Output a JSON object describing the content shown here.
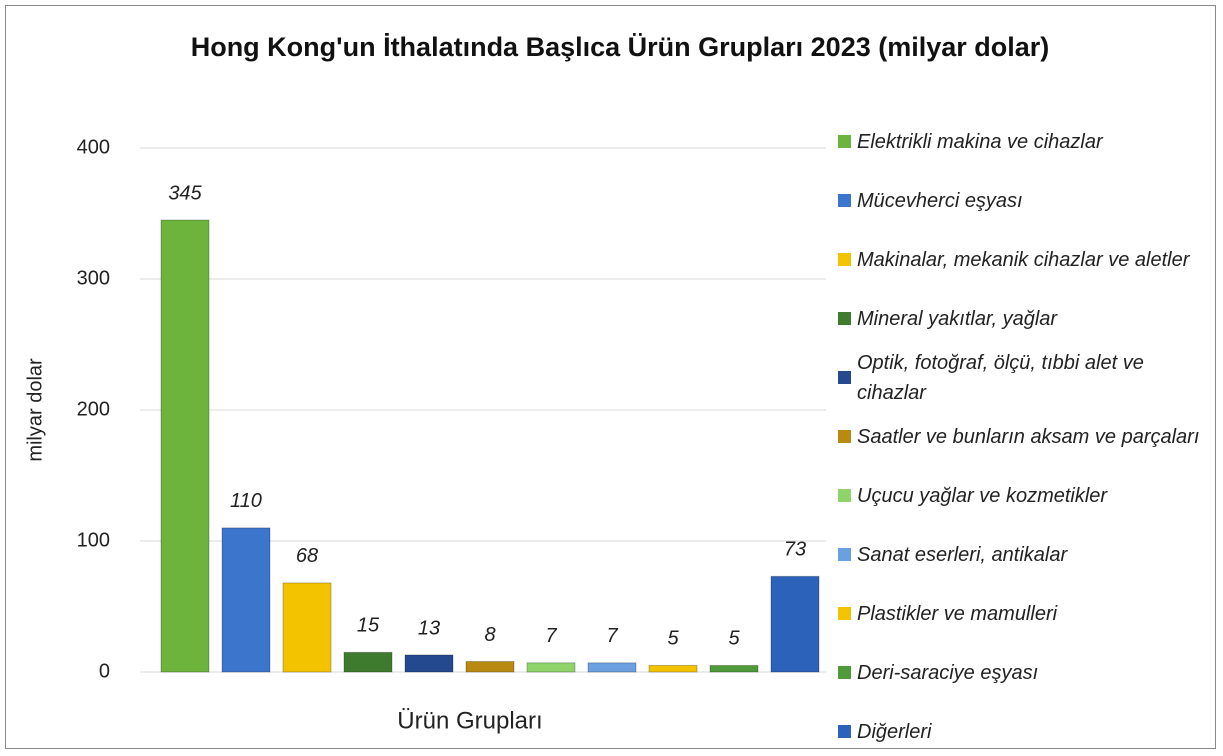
{
  "chart_data": {
    "type": "bar",
    "title": "Hong Kong'un İthalatında Başlıca Ürün Grupları 2023 (milyar dolar)",
    "xlabel": "Ürün Grupları",
    "ylabel": "milyar dolar",
    "categories": [
      "Elektrikli makina ve cihazlar",
      "Mücevherci eşyası",
      "Makinalar, mekanik cihazlar ve aletler",
      "Mineral yakıtlar, yağlar",
      "Optik, fotoğraf, ölçü, tıbbi alet ve cihazlar",
      "Saatler ve bunların aksam ve parçaları",
      "Uçucu yağlar ve kozmetikler",
      "Sanat eserleri, antikalar",
      "Plastikler ve mamulleri",
      "Deri-saraciye eşyası",
      "Diğerleri"
    ],
    "values": [
      345,
      110,
      68,
      15,
      13,
      8,
      7,
      7,
      5,
      5,
      73
    ],
    "colors": [
      "#6cb43c",
      "#3b75cc",
      "#f4c300",
      "#3f7b2f",
      "#24498f",
      "#b98a12",
      "#8fd46b",
      "#6aa0e0",
      "#f4c300",
      "#4f9a3a",
      "#2c62ba"
    ],
    "ylim": [
      0,
      400
    ],
    "yticks": [
      0,
      100,
      200,
      300,
      400
    ],
    "grid": true,
    "legend": "right"
  }
}
